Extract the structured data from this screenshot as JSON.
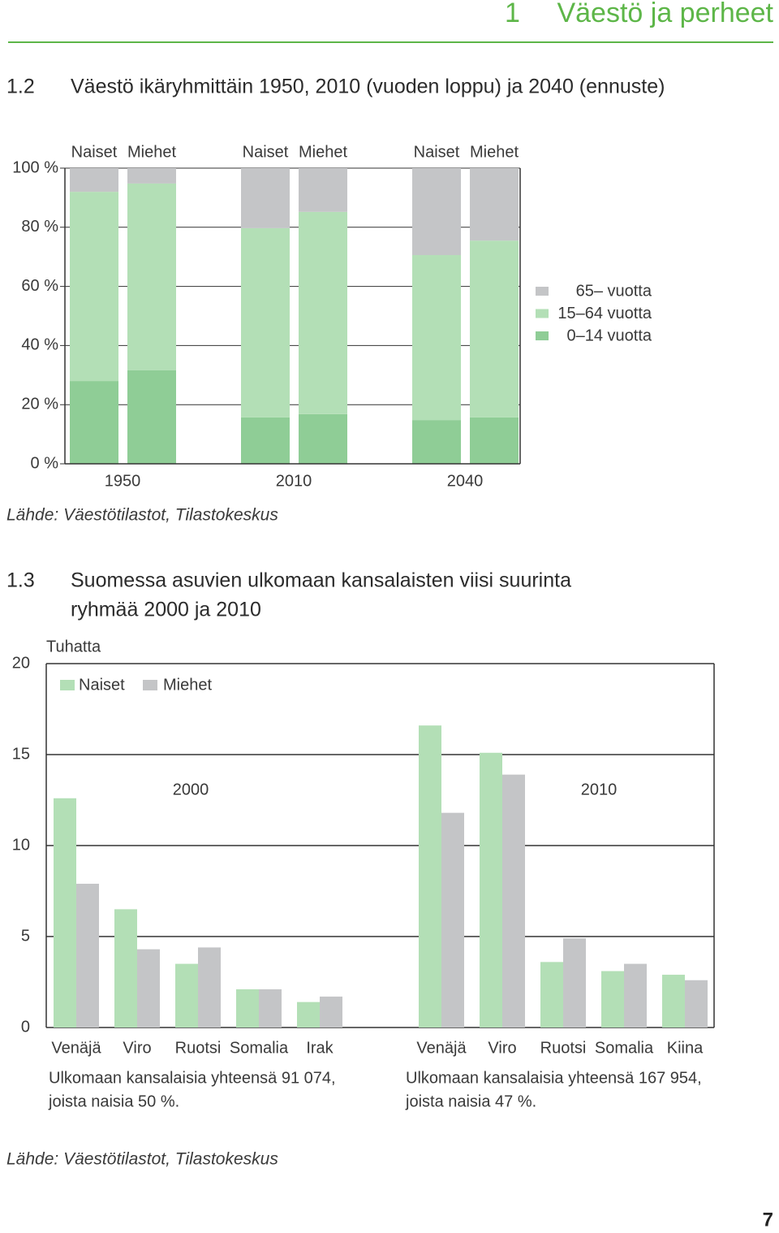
{
  "header": {
    "chapter_number": "1",
    "chapter_title": "Väestö ja perheet"
  },
  "page_number": "7",
  "chart_data": [
    {
      "type": "stacked_bar",
      "number": "1.2",
      "title": "Väestö ikäryhmittäin 1950, 2010 (vuoden loppu) ja 2040 (ennuste)",
      "categories": [
        "Naiset",
        "Miehet",
        "Naiset",
        "Miehet",
        "Naiset",
        "Miehet"
      ],
      "groups": [
        "1950",
        "2010",
        "2040"
      ],
      "series": [
        {
          "name": "0–14 vuotta",
          "color": "#8fcd96",
          "values": [
            28.0,
            31.6,
            15.7,
            16.8,
            14.8,
            15.7
          ]
        },
        {
          "name": "15–64 vuotta",
          "color": "#b3dfb6",
          "values": [
            64.0,
            63.2,
            64.0,
            68.4,
            55.8,
            59.8
          ]
        },
        {
          "name": "65– vuotta",
          "color": "#c4c5c7",
          "values": [
            8.0,
            5.2,
            20.3,
            14.8,
            29.4,
            24.5
          ]
        }
      ],
      "ylim": [
        0,
        100
      ],
      "yticks": [
        {
          "value": 0,
          "label": "0 %"
        },
        {
          "value": 20,
          "label": "20 %"
        },
        {
          "value": 40,
          "label": "40 %"
        },
        {
          "value": 60,
          "label": "60 %"
        },
        {
          "value": 80,
          "label": "80 %"
        },
        {
          "value": 100,
          "label": "100 %"
        }
      ],
      "grid": true,
      "source": "Lähde: Väestötilastot, Tilastokeskus"
    },
    {
      "type": "grouped_bar",
      "number": "1.3",
      "title": [
        "Suomessa asuvien ulkomaan kansalaisten viisi suurinta",
        "ryhmää 2000 ja 2010"
      ],
      "y_label": "Tuhatta",
      "categories": [
        "Venäjä",
        "Viro",
        "Ruotsi",
        "Somalia",
        "Irak",
        "Venäjä",
        "Viro",
        "Ruotsi",
        "Somalia",
        "Kiina"
      ],
      "panels": [
        {
          "label": "2000",
          "note": [
            "Ulkomaan kansalaisia yhteensä 91 074,",
            "joista naisia 50 %."
          ]
        },
        {
          "label": "2010",
          "note": [
            "Ulkomaan kansalaisia yhteensä 167 954,",
            "joista naisia 47 %."
          ]
        }
      ],
      "series": [
        {
          "name": "Naiset",
          "color": "#b3dfb6",
          "values": [
            12.6,
            6.5,
            3.5,
            2.1,
            1.4,
            16.6,
            15.1,
            3.6,
            3.1,
            2.9
          ]
        },
        {
          "name": "Miehet",
          "color": "#c4c5c7",
          "values": [
            7.9,
            4.3,
            4.4,
            2.1,
            1.7,
            11.8,
            13.9,
            4.9,
            3.5,
            2.6
          ]
        }
      ],
      "ylim": [
        0,
        20
      ],
      "yticks": [
        0,
        5,
        10,
        15,
        20
      ],
      "grid": true,
      "source": "Lähde: Väestötilastot, Tilastokeskus"
    }
  ]
}
